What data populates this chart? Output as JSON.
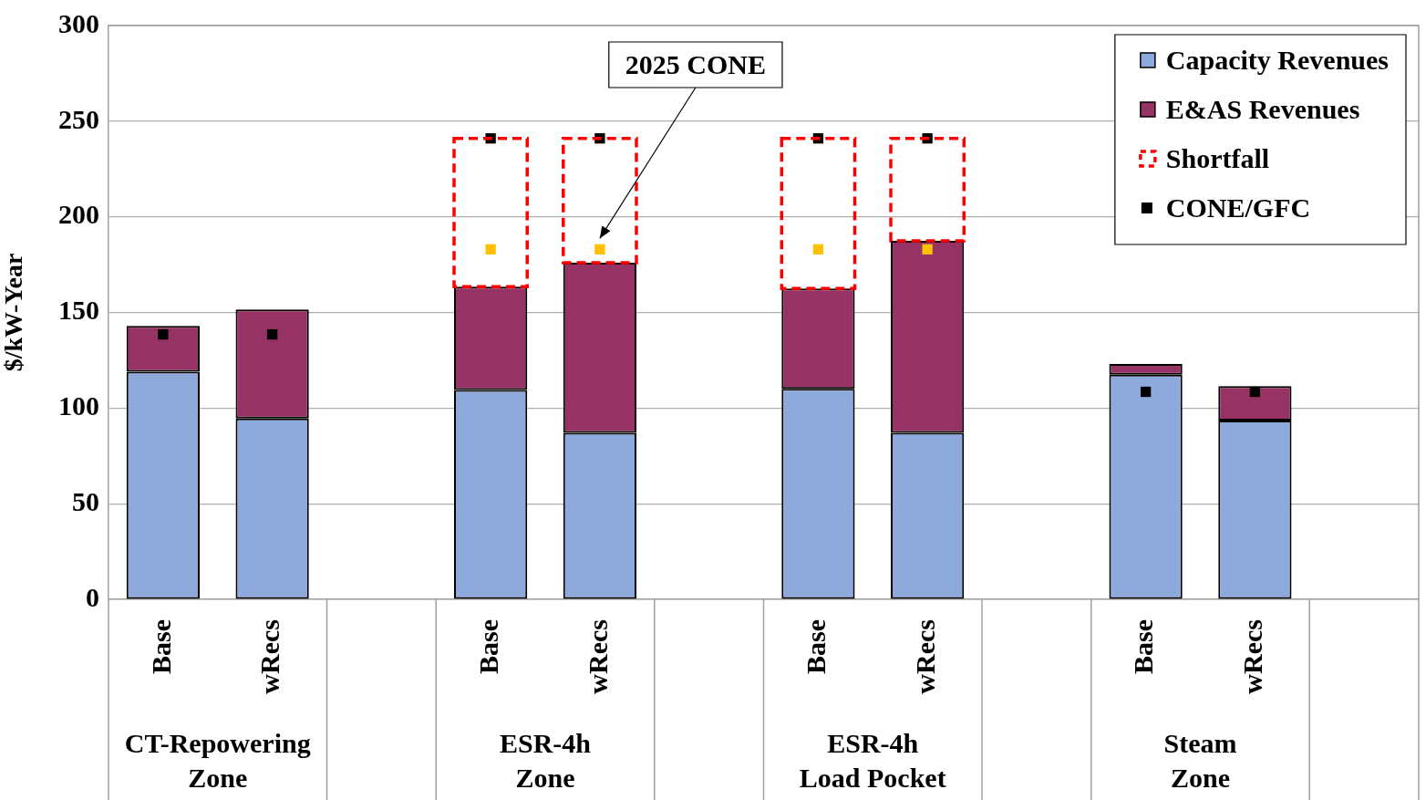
{
  "chart_data": {
    "type": "bar",
    "ylabel": "$/kW-Year",
    "categories": [
      "Base",
      "wRecs",
      null,
      "Base",
      "wRecs",
      null,
      "Base",
      "wRecs",
      null,
      "Base",
      "wRecs",
      null
    ],
    "stacked": true,
    "ylim": [
      0,
      300
    ],
    "yticks": [
      0,
      50,
      100,
      150,
      200,
      250,
      300
    ],
    "grid": "y",
    "legend": "top right",
    "series": [
      {
        "name": "Capacity Revenues",
        "color": "#8eaadc",
        "values": [
          119,
          94.5,
          null,
          109.5,
          87,
          null,
          110,
          87,
          null,
          117.5,
          93.5,
          null
        ]
      },
      {
        "name": "E&AS Revenues",
        "color": "#963264",
        "values": [
          24,
          57,
          null,
          54,
          89,
          null,
          52.5,
          100.5,
          null,
          5.5,
          18,
          null
        ]
      },
      {
        "name": "Shortfall",
        "color": "#ff0000",
        "line_style": "dashed",
        "values": [
          null,
          null,
          null,
          77.5,
          65,
          null,
          78.5,
          53.5,
          null,
          null,
          null,
          null
        ]
      },
      {
        "name": "CONE/GFC",
        "type": "scatter",
        "marker": "square",
        "color": "#000000",
        "values": [
          138.5,
          138.5,
          null,
          241,
          241,
          null,
          241,
          241,
          null,
          108.5,
          108.5,
          null
        ]
      },
      {
        "type": "scatter",
        "marker": "square",
        "color": "#ffc000",
        "values": [
          null,
          null,
          null,
          183,
          183,
          null,
          183,
          183,
          null,
          null,
          null,
          null
        ]
      }
    ],
    "annotations": [
      "CT-Repowering\nZone",
      "ESR-4h\nZone",
      "ESR-4h\nLoad Pocket",
      "Steam\nZone",
      "2025 CONE"
    ]
  }
}
